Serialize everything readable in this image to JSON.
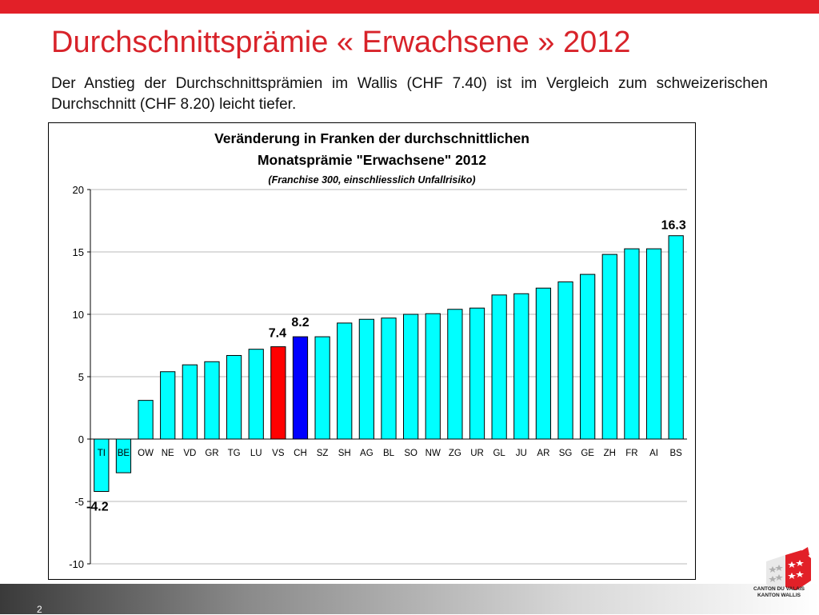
{
  "slide": {
    "title": "Durchschnittsprämie « Erwachsene » 2012",
    "intro": "Der Anstieg der Durchschnittsprämien im Wallis (CHF 7.40) ist im Vergleich zum schweizerischen Durchschnitt (CHF 8.20) leicht tiefer.",
    "page_number": "2",
    "accent_color": "#e22028"
  },
  "logo": {
    "line1": "CANTON DU VALAIS",
    "line2": "KANTON WALLIS"
  },
  "chart_data": {
    "type": "bar",
    "title": "Veränderung in Franken der durchschnittlichen Monatsprämie \"Erwachsene\" 2012",
    "title_line1": "Veränderung in Franken der durchschnittlichen",
    "title_line2": "Monatsprämie \"Erwachsene\" 2012",
    "subtitle": "(Franchise 300, einschliesslich Unfallrisiko)",
    "categories": [
      "TI",
      "BE",
      "OW",
      "NE",
      "VD",
      "GR",
      "TG",
      "LU",
      "VS",
      "CH",
      "SZ",
      "SH",
      "AG",
      "BL",
      "SO",
      "NW",
      "ZG",
      "UR",
      "GL",
      "JU",
      "AR",
      "SG",
      "GE",
      "ZH",
      "FR",
      "AI",
      "BS"
    ],
    "values": [
      -4.2,
      -2.7,
      3.1,
      5.4,
      5.95,
      6.2,
      6.7,
      7.2,
      7.4,
      8.2,
      8.2,
      9.3,
      9.6,
      9.7,
      10.0,
      10.05,
      10.4,
      10.5,
      11.55,
      11.65,
      12.1,
      12.6,
      13.2,
      14.8,
      15.25,
      15.25,
      16.3
    ],
    "ylim": [
      -10,
      20
    ],
    "yticks": [
      -10,
      -5,
      0,
      5,
      10,
      15,
      20
    ],
    "grid": true,
    "legend": "none",
    "colors": {
      "default": "#00ffff",
      "VS": "#ff0000",
      "CH": "#0000ff"
    },
    "data_labels": [
      {
        "category": "TI",
        "text": "-4.2"
      },
      {
        "category": "VS",
        "text": "7.4"
      },
      {
        "category": "CH",
        "text": "8.2"
      },
      {
        "category": "BS",
        "text": "16.3"
      }
    ]
  }
}
